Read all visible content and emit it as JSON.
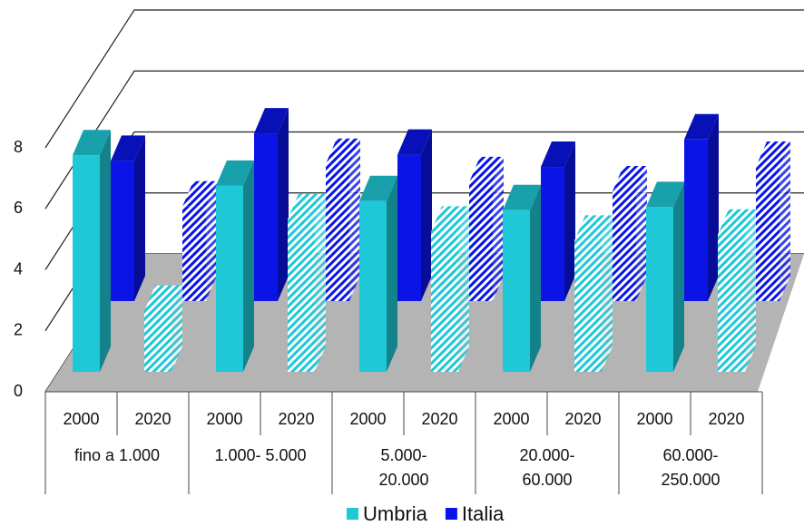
{
  "chart_data": {
    "type": "bar3d",
    "categories": [
      "2000",
      "2020",
      "2000",
      "2020",
      "2000",
      "2020",
      "2000",
      "2020",
      "2000",
      "2020"
    ],
    "groups": [
      [
        "fino a 1.000"
      ],
      [
        "1.000- 5.000"
      ],
      [
        "5.000-",
        "20.000"
      ],
      [
        "20.000-",
        "60.000"
      ],
      [
        "60.000-",
        "250.000"
      ]
    ],
    "series": [
      {
        "name": "Umbria",
        "color": "#1ec8d6",
        "values": [
          7.1,
          2.0,
          6.1,
          5.0,
          5.6,
          4.6,
          5.3,
          4.3,
          5.4,
          4.5
        ]
      },
      {
        "name": "Italia",
        "color": "#0a14e6",
        "values": [
          4.6,
          3.1,
          5.5,
          4.5,
          4.8,
          3.9,
          4.4,
          3.6,
          5.3,
          4.4
        ]
      }
    ],
    "ylim": [
      0,
      8
    ],
    "yticks": [
      0,
      2,
      4,
      6,
      8
    ],
    "grid": true,
    "legend": "bottom"
  }
}
